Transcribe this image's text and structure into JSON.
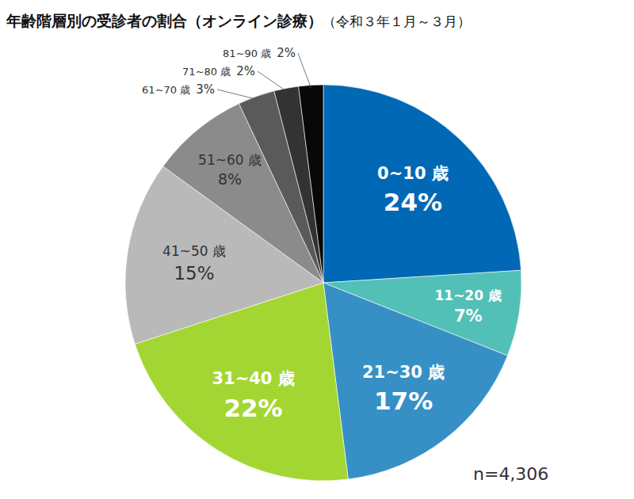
{
  "chart_data": {
    "type": "pie",
    "title": "年齢階層別の受診者の割合（オンライン診療）",
    "subtitle": "（令和３年１月～３月）",
    "categories": [
      "0~10 歳",
      "11~20 歳",
      "21~30 歳",
      "31~40 歳",
      "41~50 歳",
      "51~60 歳",
      "61~70 歳",
      "71~80 歳",
      "81~90 歳"
    ],
    "values": [
      24,
      7,
      17,
      22,
      15,
      8,
      3,
      2,
      2
    ],
    "value_labels": [
      "24%",
      "7%",
      "17%",
      "22%",
      "15%",
      "8%",
      "3%",
      "2%",
      "2%"
    ],
    "colors": [
      "#0068b5",
      "#52c0b6",
      "#3790c5",
      "#a4d633",
      "#b9b9b9",
      "#8b8b8b",
      "#5a5a5a",
      "#333333",
      "#080808"
    ],
    "data_labels": true,
    "annotations": [
      "n=4,306"
    ]
  }
}
